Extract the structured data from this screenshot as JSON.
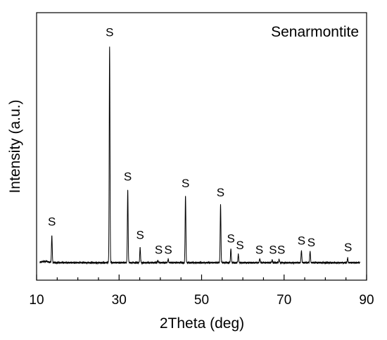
{
  "chart_data": {
    "type": "line",
    "legend": "Senarmontite",
    "xlabel": "2Theta (deg)",
    "ylabel": "Intensity (a.u.)",
    "xlim": [
      10,
      90
    ],
    "ylim": [
      0,
      100
    ],
    "xticks": [
      10,
      30,
      50,
      70,
      90
    ],
    "xtick_labels": [
      "10",
      "30",
      "50",
      "70",
      "90"
    ],
    "baseline": 1.5,
    "peaks": [
      {
        "x": 13.7,
        "y": 13.6
      },
      {
        "x": 27.7,
        "y": 97.6
      },
      {
        "x": 32.1,
        "y": 33.8
      },
      {
        "x": 35.1,
        "y": 8.2
      },
      {
        "x": 39.4,
        "y": 2.6
      },
      {
        "x": 41.9,
        "y": 3.0
      },
      {
        "x": 46.1,
        "y": 31.4
      },
      {
        "x": 54.6,
        "y": 27.3
      },
      {
        "x": 57.1,
        "y": 7.6
      },
      {
        "x": 58.9,
        "y": 5.2
      },
      {
        "x": 64.1,
        "y": 3.3
      },
      {
        "x": 67.1,
        "y": 2.7
      },
      {
        "x": 68.8,
        "y": 3.0
      },
      {
        "x": 74.2,
        "y": 7.0
      },
      {
        "x": 76.3,
        "y": 6.7
      },
      {
        "x": 85.4,
        "y": 3.6
      }
    ],
    "peak_labels": [
      {
        "text": "S",
        "x": 13.7,
        "y": 18
      },
      {
        "text": "S",
        "x": 27.7,
        "y": 102
      },
      {
        "text": "S",
        "x": 32.1,
        "y": 38
      },
      {
        "text": "S",
        "x": 35.1,
        "y": 12
      },
      {
        "text": "S",
        "x": 39.6,
        "y": 5.5
      },
      {
        "text": "S",
        "x": 41.9,
        "y": 5.5
      },
      {
        "text": "S",
        "x": 46.1,
        "y": 35
      },
      {
        "text": "S",
        "x": 54.6,
        "y": 31
      },
      {
        "text": "S",
        "x": 57.1,
        "y": 10.5
      },
      {
        "text": "S",
        "x": 59.3,
        "y": 7.5
      },
      {
        "text": "S",
        "x": 64.0,
        "y": 5.5
      },
      {
        "text": "S",
        "x": 67.3,
        "y": 5.5
      },
      {
        "text": "S",
        "x": 69.3,
        "y": 5.5
      },
      {
        "text": "S",
        "x": 74.2,
        "y": 9.5
      },
      {
        "text": "S",
        "x": 76.6,
        "y": 8.7
      },
      {
        "text": "S",
        "x": 85.5,
        "y": 6.5
      }
    ]
  }
}
